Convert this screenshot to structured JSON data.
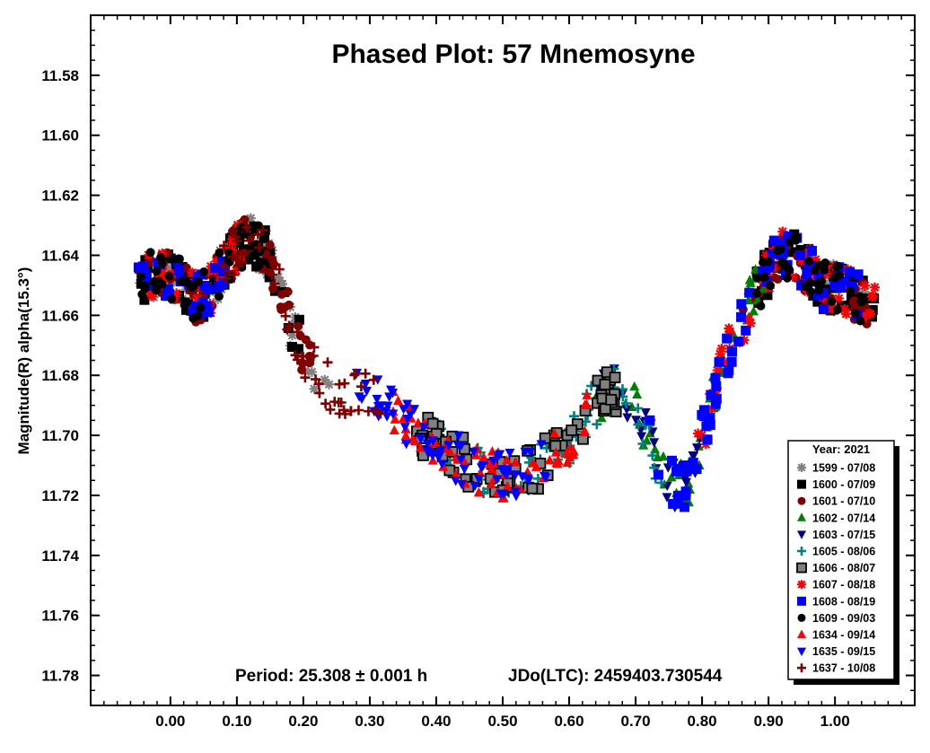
{
  "chart_data": {
    "type": "scatter",
    "title": "Phased Plot: 57 Mnemosyne",
    "xlabel": "",
    "ylabel": "Magnitude(R) alpha(15.3°)",
    "xlim": [
      -0.12,
      1.12
    ],
    "ylim": [
      11.56,
      11.79
    ],
    "y_inverted": true,
    "x_ticks": [
      "0.00",
      "0.10",
      "0.20",
      "0.30",
      "0.40",
      "0.50",
      "0.60",
      "0.70",
      "0.80",
      "0.90",
      "1.00"
    ],
    "y_ticks": [
      "11.58",
      "11.60",
      "11.62",
      "11.64",
      "11.66",
      "11.68",
      "11.70",
      "11.72",
      "11.74",
      "11.76",
      "11.78"
    ],
    "annotation": {
      "period": "Period: 25.308 ± 0.001 h",
      "epoch": "JDo(LTC): 2459403.730544"
    },
    "legend": {
      "title": "Year: 2021",
      "placement": "bottom-right"
    },
    "curve": {
      "x": [
        0.0,
        0.02,
        0.04,
        0.06,
        0.08,
        0.1,
        0.12,
        0.14,
        0.16,
        0.18,
        0.2,
        0.22,
        0.25,
        0.3,
        0.35,
        0.4,
        0.45,
        0.5,
        0.55,
        0.6,
        0.63,
        0.66,
        0.68,
        0.7,
        0.72,
        0.74,
        0.76,
        0.78,
        0.8,
        0.82,
        0.84,
        0.86,
        0.88,
        0.9,
        0.92,
        0.94,
        0.96,
        0.98,
        1.0,
        1.02,
        1.04,
        1.06
      ],
      "y": [
        11.647,
        11.65,
        11.655,
        11.652,
        11.644,
        11.638,
        11.634,
        11.638,
        11.648,
        11.662,
        11.672,
        11.68,
        11.685,
        11.685,
        11.695,
        11.703,
        11.71,
        11.714,
        11.711,
        11.703,
        11.692,
        11.685,
        11.685,
        11.692,
        11.702,
        11.712,
        11.718,
        11.715,
        11.7,
        11.685,
        11.672,
        11.662,
        11.652,
        11.645,
        11.64,
        11.641,
        11.645,
        11.65,
        11.651,
        11.652,
        11.655,
        11.656
      ]
    },
    "series": [
      {
        "name": "1599 - 07/08",
        "color": "#808080",
        "marker": "asterisk",
        "x_range": [
          -0.05,
          0.24
        ],
        "extra_range": [
          0.97,
          1.05
        ]
      },
      {
        "name": "1600 - 07/09",
        "color": "#000000",
        "marker": "square",
        "x_range": [
          -0.05,
          0.2
        ],
        "extra_range": [
          0.88,
          1.06
        ]
      },
      {
        "name": "1601 - 07/10",
        "color": "#800000",
        "marker": "circle",
        "x_range": [
          -0.05,
          0.22
        ],
        "extra_range": [
          0.86,
          1.05
        ]
      },
      {
        "name": "1602 - 07/14",
        "color": "#008000",
        "marker": "triangle-up",
        "x_range": [
          0.64,
          0.9
        ],
        "extra_range": null
      },
      {
        "name": "1603 - 07/15",
        "color": "#000080",
        "marker": "triangle-down",
        "x_range": [
          0.64,
          0.8
        ],
        "extra_range": null
      },
      {
        "name": "1605 - 08/06",
        "color": "#008080",
        "marker": "plus",
        "x_range": [
          0.4,
          0.74
        ],
        "extra_range": null
      },
      {
        "name": "1606 - 08/07",
        "color": "#808080",
        "marker": "square-outlined",
        "x_range": [
          0.37,
          0.68
        ],
        "extra_range": null
      },
      {
        "name": "1607 - 08/18",
        "color": "#ff0000",
        "marker": "asterisk",
        "x_range": [
          -0.04,
          0.12
        ],
        "extra_range": [
          0.79,
          1.06
        ]
      },
      {
        "name": "1608 - 08/19",
        "color": "#0000ff",
        "marker": "square",
        "x_range": [
          -0.05,
          0.08
        ],
        "extra_range": [
          0.72,
          1.04
        ]
      },
      {
        "name": "1609 - 09/03",
        "color": "#000000",
        "marker": "circle",
        "x_range": [
          -0.05,
          0.14
        ],
        "extra_range": [
          0.88,
          1.05
        ]
      },
      {
        "name": "1634 - 09/14",
        "color": "#ff0000",
        "marker": "triangle-up",
        "x_range": [
          0.33,
          0.63
        ],
        "extra_range": null
      },
      {
        "name": "1635 - 09/15",
        "color": "#0000ff",
        "marker": "triangle-down",
        "x_range": [
          0.28,
          0.57
        ],
        "extra_range": null
      },
      {
        "name": "1637 - 10/08",
        "color": "#800000",
        "marker": "plus",
        "x_range": [
          0.08,
          0.32
        ],
        "extra_range": null
      }
    ]
  }
}
